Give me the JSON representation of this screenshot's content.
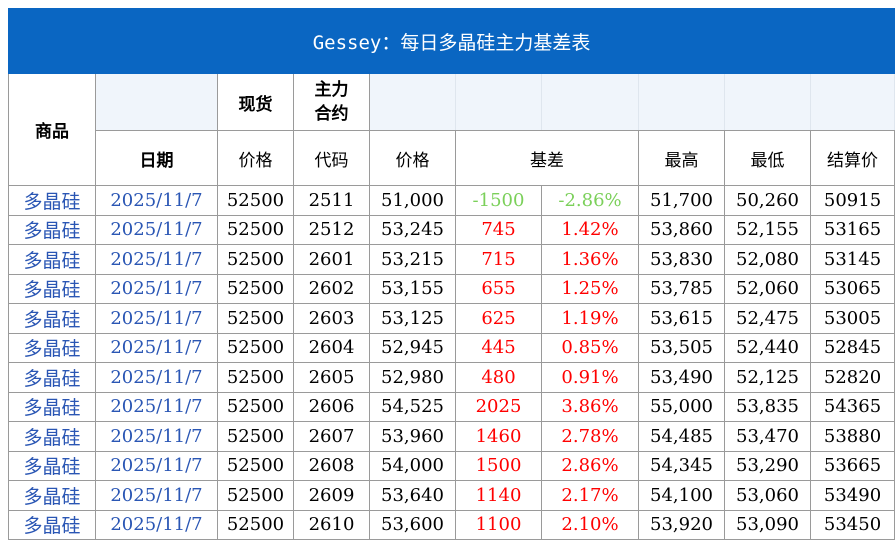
{
  "title": "Gessey：每日多晶硅主力基差表",
  "headers": {
    "product": "商品",
    "date": "日期",
    "spot": "现货",
    "spot_price": "价格",
    "main_contract": "主力\n合约",
    "code": "代码",
    "price": "价格",
    "basis": "基差",
    "high": "最高",
    "low": "最低",
    "settle": "结算价"
  },
  "colors": {
    "header_bg": "#0a66c2",
    "positive": "#ff0000",
    "negative": "#7bd05a",
    "link_blue": "#2a56b4"
  },
  "rows": [
    {
      "product": "多晶硅",
      "date": "2025/11/7",
      "spot": "52500",
      "code": "2511",
      "price": "51,000",
      "basis": "-1500",
      "pct": "-2.86%",
      "high": "51,700",
      "low": "50,260",
      "settle": "50915",
      "sign": "neg"
    },
    {
      "product": "多晶硅",
      "date": "2025/11/7",
      "spot": "52500",
      "code": "2512",
      "price": "53,245",
      "basis": "745",
      "pct": "1.42%",
      "high": "53,860",
      "low": "52,155",
      "settle": "53165",
      "sign": "pos"
    },
    {
      "product": "多晶硅",
      "date": "2025/11/7",
      "spot": "52500",
      "code": "2601",
      "price": "53,215",
      "basis": "715",
      "pct": "1.36%",
      "high": "53,830",
      "low": "52,080",
      "settle": "53145",
      "sign": "pos"
    },
    {
      "product": "多晶硅",
      "date": "2025/11/7",
      "spot": "52500",
      "code": "2602",
      "price": "53,155",
      "basis": "655",
      "pct": "1.25%",
      "high": "53,785",
      "low": "52,060",
      "settle": "53065",
      "sign": "pos"
    },
    {
      "product": "多晶硅",
      "date": "2025/11/7",
      "spot": "52500",
      "code": "2603",
      "price": "53,125",
      "basis": "625",
      "pct": "1.19%",
      "high": "53,615",
      "low": "52,475",
      "settle": "53005",
      "sign": "pos"
    },
    {
      "product": "多晶硅",
      "date": "2025/11/7",
      "spot": "52500",
      "code": "2604",
      "price": "52,945",
      "basis": "445",
      "pct": "0.85%",
      "high": "53,505",
      "low": "52,440",
      "settle": "52845",
      "sign": "pos"
    },
    {
      "product": "多晶硅",
      "date": "2025/11/7",
      "spot": "52500",
      "code": "2605",
      "price": "52,980",
      "basis": "480",
      "pct": "0.91%",
      "high": "53,490",
      "low": "52,125",
      "settle": "52820",
      "sign": "pos"
    },
    {
      "product": "多晶硅",
      "date": "2025/11/7",
      "spot": "52500",
      "code": "2606",
      "price": "54,525",
      "basis": "2025",
      "pct": "3.86%",
      "high": "55,000",
      "low": "53,835",
      "settle": "54365",
      "sign": "pos"
    },
    {
      "product": "多晶硅",
      "date": "2025/11/7",
      "spot": "52500",
      "code": "2607",
      "price": "53,960",
      "basis": "1460",
      "pct": "2.78%",
      "high": "54,485",
      "low": "53,470",
      "settle": "53880",
      "sign": "pos"
    },
    {
      "product": "多晶硅",
      "date": "2025/11/7",
      "spot": "52500",
      "code": "2608",
      "price": "54,000",
      "basis": "1500",
      "pct": "2.86%",
      "high": "54,345",
      "low": "53,290",
      "settle": "53665",
      "sign": "pos"
    },
    {
      "product": "多晶硅",
      "date": "2025/11/7",
      "spot": "52500",
      "code": "2609",
      "price": "53,640",
      "basis": "1140",
      "pct": "2.17%",
      "high": "54,100",
      "low": "53,060",
      "settle": "53490",
      "sign": "pos"
    },
    {
      "product": "多晶硅",
      "date": "2025/11/7",
      "spot": "52500",
      "code": "2610",
      "price": "53,600",
      "basis": "1100",
      "pct": "2.10%",
      "high": "53,920",
      "low": "53,090",
      "settle": "53450",
      "sign": "pos"
    }
  ]
}
